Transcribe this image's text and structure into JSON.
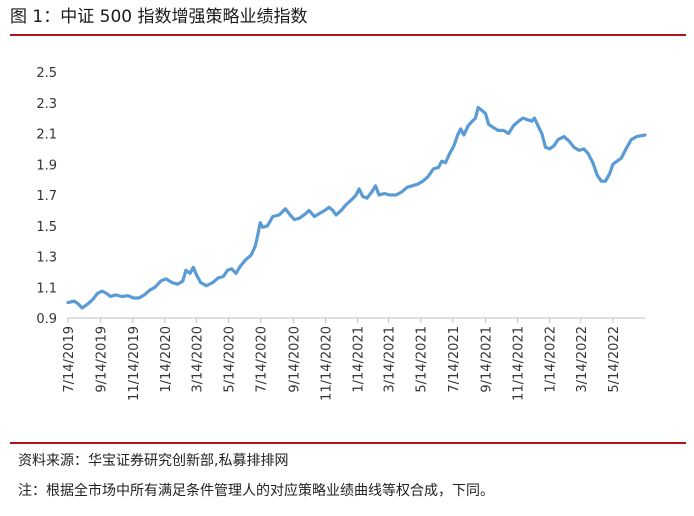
{
  "header": {
    "title": "图 1：中证 500 指数增强策略业绩指数"
  },
  "footer": {
    "source": "资料来源：华宝证券研究创新部,私募排排网",
    "note": "注：根据全市场中所有满足条件管理人的对应策略业绩曲线等权合成，下同。"
  },
  "chart_data": {
    "type": "line",
    "title": "中证 500 指数增强策略业绩指数",
    "xlabel": "",
    "ylabel": "",
    "ylim": [
      0.9,
      2.5
    ],
    "yticks": [
      0.9,
      1.1,
      1.3,
      1.5,
      1.7,
      1.9,
      2.1,
      2.3,
      2.5
    ],
    "ytick_labels": [
      "0.9",
      "1.1",
      "1.3",
      "1.5",
      "1.7",
      "1.9",
      "2.1",
      "2.3",
      "2.5"
    ],
    "xlim": [
      "2019-07-14",
      "2022-07-14"
    ],
    "xticks": [
      {
        "date": "2019-07-14",
        "label": "7/14/2019"
      },
      {
        "date": "2019-09-14",
        "label": "9/14/2019"
      },
      {
        "date": "2019-11-14",
        "label": "11/14/2019"
      },
      {
        "date": "2020-01-14",
        "label": "1/14/2020"
      },
      {
        "date": "2020-03-14",
        "label": "3/14/2020"
      },
      {
        "date": "2020-05-14",
        "label": "5/14/2020"
      },
      {
        "date": "2020-07-14",
        "label": "7/14/2020"
      },
      {
        "date": "2020-09-14",
        "label": "9/14/2020"
      },
      {
        "date": "2020-11-14",
        "label": "11/14/2020"
      },
      {
        "date": "2021-01-14",
        "label": "1/14/2021"
      },
      {
        "date": "2021-03-14",
        "label": "3/14/2021"
      },
      {
        "date": "2021-05-14",
        "label": "5/14/2021"
      },
      {
        "date": "2021-07-14",
        "label": "7/14/2021"
      },
      {
        "date": "2021-09-14",
        "label": "9/14/2021"
      },
      {
        "date": "2021-11-14",
        "label": "11/14/2021"
      },
      {
        "date": "2022-01-14",
        "label": "1/14/2022"
      },
      {
        "date": "2022-03-14",
        "label": "3/14/2022"
      },
      {
        "date": "2022-05-14",
        "label": "5/14/2022"
      }
    ],
    "grid": false,
    "legend": "none",
    "series": [
      {
        "color": "#5b9bd5",
        "points": [
          [
            "2019-07-14",
            1.0
          ],
          [
            "2019-07-26",
            1.01
          ],
          [
            "2019-08-03",
            0.99
          ],
          [
            "2019-08-10",
            0.965
          ],
          [
            "2019-08-20",
            0.99
          ],
          [
            "2019-08-30",
            1.02
          ],
          [
            "2019-09-08",
            1.06
          ],
          [
            "2019-09-17",
            1.075
          ],
          [
            "2019-09-25",
            1.06
          ],
          [
            "2019-10-03",
            1.04
          ],
          [
            "2019-10-12",
            1.05
          ],
          [
            "2019-10-25",
            1.04
          ],
          [
            "2019-11-05",
            1.045
          ],
          [
            "2019-11-15",
            1.03
          ],
          [
            "2019-11-26",
            1.03
          ],
          [
            "2019-12-06",
            1.05
          ],
          [
            "2019-12-16",
            1.08
          ],
          [
            "2019-12-26",
            1.1
          ],
          [
            "2020-01-06",
            1.14
          ],
          [
            "2020-01-16",
            1.155
          ],
          [
            "2020-01-28",
            1.13
          ],
          [
            "2020-02-07",
            1.12
          ],
          [
            "2020-02-17",
            1.14
          ],
          [
            "2020-02-23",
            1.21
          ],
          [
            "2020-03-02",
            1.19
          ],
          [
            "2020-03-08",
            1.23
          ],
          [
            "2020-03-14",
            1.18
          ],
          [
            "2020-03-22",
            1.13
          ],
          [
            "2020-04-02",
            1.11
          ],
          [
            "2020-04-14",
            1.13
          ],
          [
            "2020-04-24",
            1.16
          ],
          [
            "2020-05-04",
            1.17
          ],
          [
            "2020-05-12",
            1.21
          ],
          [
            "2020-05-20",
            1.22
          ],
          [
            "2020-05-28",
            1.19
          ],
          [
            "2020-06-06",
            1.24
          ],
          [
            "2020-06-16",
            1.28
          ],
          [
            "2020-06-26",
            1.31
          ],
          [
            "2020-07-04",
            1.37
          ],
          [
            "2020-07-09",
            1.45
          ],
          [
            "2020-07-13",
            1.52
          ],
          [
            "2020-07-18",
            1.49
          ],
          [
            "2020-07-27",
            1.5
          ],
          [
            "2020-08-06",
            1.56
          ],
          [
            "2020-08-18",
            1.57
          ],
          [
            "2020-08-30",
            1.61
          ],
          [
            "2020-09-08",
            1.57
          ],
          [
            "2020-09-16",
            1.54
          ],
          [
            "2020-09-26",
            1.55
          ],
          [
            "2020-10-08",
            1.58
          ],
          [
            "2020-10-14",
            1.6
          ],
          [
            "2020-10-24",
            1.56
          ],
          [
            "2020-11-03",
            1.58
          ],
          [
            "2020-11-13",
            1.6
          ],
          [
            "2020-11-21",
            1.62
          ],
          [
            "2020-11-28",
            1.6
          ],
          [
            "2020-12-04",
            1.57
          ],
          [
            "2020-12-14",
            1.6
          ],
          [
            "2020-12-24",
            1.64
          ],
          [
            "2021-01-03",
            1.67
          ],
          [
            "2021-01-11",
            1.7
          ],
          [
            "2021-01-17",
            1.74
          ],
          [
            "2021-01-24",
            1.69
          ],
          [
            "2021-02-01",
            1.68
          ],
          [
            "2021-02-10",
            1.72
          ],
          [
            "2021-02-17",
            1.76
          ],
          [
            "2021-02-24",
            1.7
          ],
          [
            "2021-03-06",
            1.71
          ],
          [
            "2021-03-16",
            1.7
          ],
          [
            "2021-03-28",
            1.7
          ],
          [
            "2021-04-08",
            1.72
          ],
          [
            "2021-04-18",
            1.75
          ],
          [
            "2021-04-28",
            1.76
          ],
          [
            "2021-05-08",
            1.77
          ],
          [
            "2021-05-18",
            1.79
          ],
          [
            "2021-05-28",
            1.82
          ],
          [
            "2021-06-07",
            1.87
          ],
          [
            "2021-06-17",
            1.88
          ],
          [
            "2021-06-23",
            1.92
          ],
          [
            "2021-06-30",
            1.91
          ],
          [
            "2021-07-08",
            1.97
          ],
          [
            "2021-07-16",
            2.02
          ],
          [
            "2021-07-23",
            2.09
          ],
          [
            "2021-07-29",
            2.13
          ],
          [
            "2021-08-04",
            2.09
          ],
          [
            "2021-08-12",
            2.15
          ],
          [
            "2021-08-20",
            2.18
          ],
          [
            "2021-08-26",
            2.2
          ],
          [
            "2021-08-31",
            2.27
          ],
          [
            "2021-09-07",
            2.25
          ],
          [
            "2021-09-14",
            2.23
          ],
          [
            "2021-09-20",
            2.16
          ],
          [
            "2021-09-28",
            2.14
          ],
          [
            "2021-10-08",
            2.12
          ],
          [
            "2021-10-18",
            2.12
          ],
          [
            "2021-10-28",
            2.1
          ],
          [
            "2021-11-06",
            2.15
          ],
          [
            "2021-11-16",
            2.18
          ],
          [
            "2021-11-24",
            2.2
          ],
          [
            "2021-12-03",
            2.19
          ],
          [
            "2021-12-11",
            2.18
          ],
          [
            "2021-12-16",
            2.2
          ],
          [
            "2021-12-23",
            2.15
          ],
          [
            "2021-12-30",
            2.1
          ],
          [
            "2022-01-06",
            2.01
          ],
          [
            "2022-01-14",
            2.0
          ],
          [
            "2022-01-22",
            2.02
          ],
          [
            "2022-01-30",
            2.06
          ],
          [
            "2022-02-10",
            2.08
          ],
          [
            "2022-02-20",
            2.05
          ],
          [
            "2022-03-01",
            2.01
          ],
          [
            "2022-03-11",
            1.99
          ],
          [
            "2022-03-20",
            2.0
          ],
          [
            "2022-03-28",
            1.97
          ],
          [
            "2022-04-06",
            1.91
          ],
          [
            "2022-04-14",
            1.83
          ],
          [
            "2022-04-22",
            1.79
          ],
          [
            "2022-04-30",
            1.79
          ],
          [
            "2022-05-08",
            1.84
          ],
          [
            "2022-05-14",
            1.9
          ],
          [
            "2022-05-22",
            1.92
          ],
          [
            "2022-05-30",
            1.94
          ],
          [
            "2022-06-08",
            2.0
          ],
          [
            "2022-06-18",
            2.06
          ],
          [
            "2022-06-28",
            2.08
          ],
          [
            "2022-07-14",
            2.09
          ]
        ]
      }
    ]
  }
}
